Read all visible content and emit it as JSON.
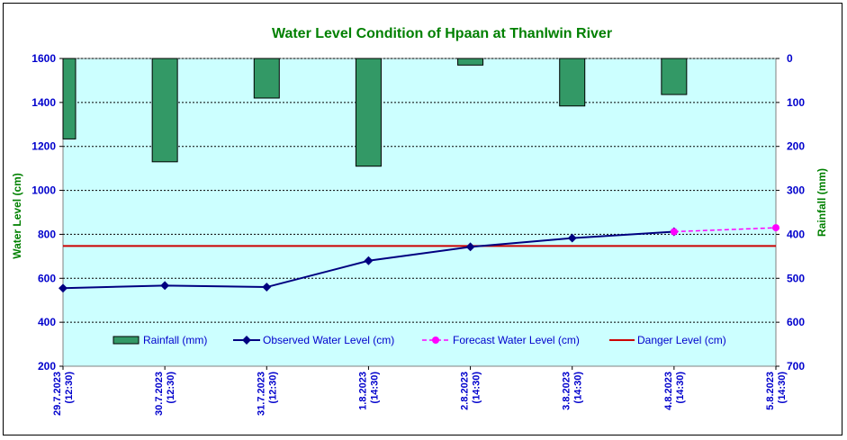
{
  "chart_data": {
    "type": "bar+line",
    "title": "Water Level Condition of Hpaan at Thanlwin River",
    "y_left": {
      "label": "Water Level (cm)",
      "range": [
        200,
        1600
      ],
      "ticks": [
        "200",
        "400",
        "600",
        "800",
        "1000",
        "1200",
        "1400",
        "1600"
      ]
    },
    "y_right": {
      "label": "Rainfall (mm)",
      "range": [
        0,
        700
      ],
      "inverted": true,
      "ticks": [
        "0",
        "100",
        "200",
        "300",
        "400",
        "500",
        "600",
        "700"
      ]
    },
    "categories": [
      {
        "date": "29.7.2023",
        "time": "(12:30)"
      },
      {
        "date": "30.7.2023",
        "time": "(12:30)"
      },
      {
        "date": "31.7.2023",
        "time": "(12:30)"
      },
      {
        "date": "1.8.2023",
        "time": "(14:30)"
      },
      {
        "date": "2.8.2023",
        "time": "(14:30)"
      },
      {
        "date": "3.8.2023",
        "time": "(14:30)"
      },
      {
        "date": "4.8.2023",
        "time": "(14:30)"
      },
      {
        "date": "5.8.2023",
        "time": "(14:30)"
      }
    ],
    "rainfall": {
      "name": "Rainfall (mm)",
      "color": "#339966",
      "values": [
        183,
        235,
        90,
        245,
        15,
        108,
        82
      ]
    },
    "observed": {
      "name": "Observed Water Level (cm)",
      "color": "#000080",
      "values": [
        555,
        567,
        560,
        680,
        743,
        783,
        812,
        null
      ]
    },
    "forecast": {
      "name": "Forecast Water Level (cm)",
      "color": "#ff00ff",
      "values": [
        null,
        null,
        null,
        null,
        null,
        null,
        812,
        830
      ]
    },
    "danger": {
      "name": "Danger Level (cm)",
      "color": "#cc0000",
      "value": 747
    },
    "grid": true,
    "legend": "bottom"
  },
  "colors": {
    "plot_bg": "#ccffff",
    "title": "#008000",
    "axis_text": "#0000cc"
  }
}
